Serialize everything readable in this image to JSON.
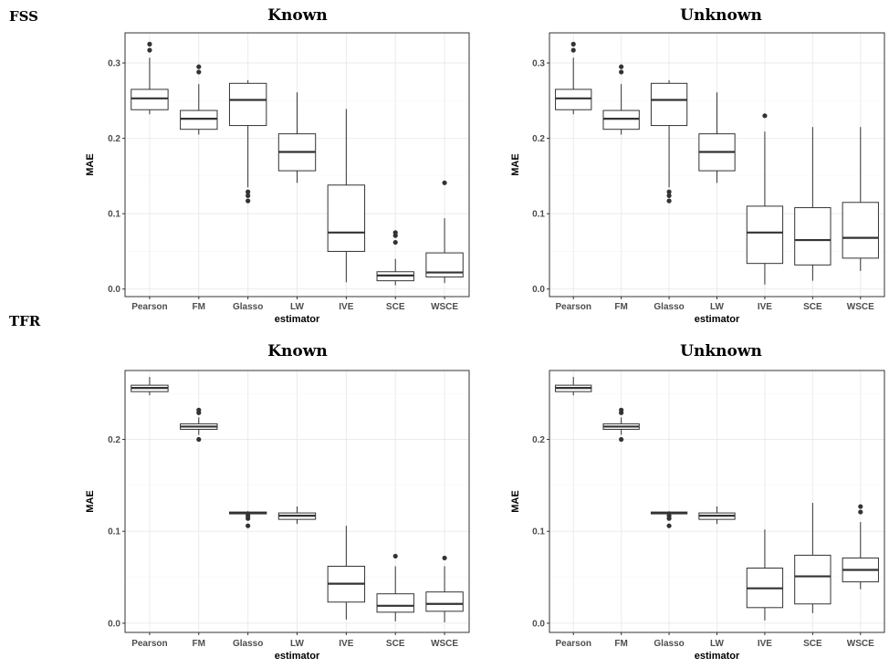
{
  "row_labels": [
    "FSS",
    "TFR"
  ],
  "chart_data": [
    {
      "type": "box",
      "group": "FSS",
      "title": "Known",
      "xlabel": "estimator",
      "ylabel": "MAE",
      "categories": [
        "Pearson",
        "FM",
        "Glasso",
        "LW",
        "IVE",
        "SCE",
        "WSCE"
      ],
      "ylim": [
        -0.01,
        0.34
      ],
      "yticks": [
        0.0,
        0.1,
        0.2,
        0.3
      ],
      "ytick_labels": [
        "0.0",
        "0.1",
        "0.2",
        "0.3"
      ],
      "boxes": [
        {
          "min": 0.232,
          "q1": 0.238,
          "median": 0.253,
          "q3": 0.265,
          "max": 0.307,
          "outliers": [
            0.317,
            0.325
          ]
        },
        {
          "min": 0.205,
          "q1": 0.212,
          "median": 0.226,
          "q3": 0.237,
          "max": 0.272,
          "outliers": [
            0.288,
            0.295
          ]
        },
        {
          "min": 0.135,
          "q1": 0.217,
          "median": 0.251,
          "q3": 0.273,
          "max": 0.277,
          "outliers": [
            0.117,
            0.124,
            0.129
          ]
        },
        {
          "min": 0.141,
          "q1": 0.157,
          "median": 0.182,
          "q3": 0.206,
          "max": 0.261,
          "outliers": []
        },
        {
          "min": 0.009,
          "q1": 0.05,
          "median": 0.075,
          "q3": 0.138,
          "max": 0.239,
          "outliers": []
        },
        {
          "min": 0.005,
          "q1": 0.011,
          "median": 0.018,
          "q3": 0.023,
          "max": 0.04,
          "outliers": [
            0.062,
            0.071,
            0.075
          ]
        },
        {
          "min": 0.008,
          "q1": 0.016,
          "median": 0.022,
          "q3": 0.048,
          "max": 0.094,
          "outliers": [
            0.141
          ]
        }
      ]
    },
    {
      "type": "box",
      "group": "FSS",
      "title": "Unknown",
      "xlabel": "estimator",
      "ylabel": "MAE",
      "categories": [
        "Pearson",
        "FM",
        "Glasso",
        "LW",
        "IVE",
        "SCE",
        "WSCE"
      ],
      "ylim": [
        -0.01,
        0.34
      ],
      "yticks": [
        0.0,
        0.1,
        0.2,
        0.3
      ],
      "ytick_labels": [
        "0.0",
        "0.1",
        "0.2",
        "0.3"
      ],
      "boxes": [
        {
          "min": 0.232,
          "q1": 0.238,
          "median": 0.253,
          "q3": 0.265,
          "max": 0.307,
          "outliers": [
            0.317,
            0.325
          ]
        },
        {
          "min": 0.205,
          "q1": 0.212,
          "median": 0.226,
          "q3": 0.237,
          "max": 0.272,
          "outliers": [
            0.288,
            0.295
          ]
        },
        {
          "min": 0.135,
          "q1": 0.217,
          "median": 0.251,
          "q3": 0.273,
          "max": 0.277,
          "outliers": [
            0.117,
            0.124,
            0.129
          ]
        },
        {
          "min": 0.141,
          "q1": 0.157,
          "median": 0.182,
          "q3": 0.206,
          "max": 0.261,
          "outliers": []
        },
        {
          "min": 0.006,
          "q1": 0.034,
          "median": 0.075,
          "q3": 0.11,
          "max": 0.209,
          "outliers": [
            0.23
          ]
        },
        {
          "min": 0.011,
          "q1": 0.032,
          "median": 0.065,
          "q3": 0.108,
          "max": 0.215,
          "outliers": []
        },
        {
          "min": 0.024,
          "q1": 0.041,
          "median": 0.068,
          "q3": 0.115,
          "max": 0.215,
          "outliers": []
        }
      ]
    },
    {
      "type": "box",
      "group": "TFR",
      "title": "Known",
      "xlabel": "estimator",
      "ylabel": "MAE",
      "categories": [
        "Pearson",
        "FM",
        "Glasso",
        "LW",
        "IVE",
        "SCE",
        "WSCE"
      ],
      "ylim": [
        -0.01,
        0.275
      ],
      "yticks": [
        0.0,
        0.1,
        0.2
      ],
      "ytick_labels": [
        "0.0",
        "0.1",
        "0.2"
      ],
      "boxes": [
        {
          "min": 0.248,
          "q1": 0.252,
          "median": 0.256,
          "q3": 0.259,
          "max": 0.268,
          "outliers": []
        },
        {
          "min": 0.205,
          "q1": 0.211,
          "median": 0.214,
          "q3": 0.217,
          "max": 0.224,
          "outliers": [
            0.2,
            0.229,
            0.232
          ]
        },
        {
          "min": 0.118,
          "q1": 0.119,
          "median": 0.12,
          "q3": 0.121,
          "max": 0.122,
          "outliers": [
            0.106,
            0.114,
            0.117
          ]
        },
        {
          "min": 0.108,
          "q1": 0.113,
          "median": 0.117,
          "q3": 0.12,
          "max": 0.127,
          "outliers": []
        },
        {
          "min": 0.004,
          "q1": 0.023,
          "median": 0.043,
          "q3": 0.062,
          "max": 0.106,
          "outliers": []
        },
        {
          "min": 0.002,
          "q1": 0.012,
          "median": 0.019,
          "q3": 0.032,
          "max": 0.062,
          "outliers": [
            0.073
          ]
        },
        {
          "min": 0.001,
          "q1": 0.013,
          "median": 0.021,
          "q3": 0.034,
          "max": 0.062,
          "outliers": [
            0.071
          ]
        }
      ]
    },
    {
      "type": "box",
      "group": "TFR",
      "title": "Unknown",
      "xlabel": "estimator",
      "ylabel": "MAE",
      "categories": [
        "Pearson",
        "FM",
        "Glasso",
        "LW",
        "IVE",
        "SCE",
        "WSCE"
      ],
      "ylim": [
        -0.01,
        0.275
      ],
      "yticks": [
        0.0,
        0.1,
        0.2
      ],
      "ytick_labels": [
        "0.0",
        "0.1",
        "0.2"
      ],
      "boxes": [
        {
          "min": 0.248,
          "q1": 0.252,
          "median": 0.256,
          "q3": 0.259,
          "max": 0.268,
          "outliers": []
        },
        {
          "min": 0.205,
          "q1": 0.211,
          "median": 0.214,
          "q3": 0.217,
          "max": 0.224,
          "outliers": [
            0.2,
            0.229,
            0.232
          ]
        },
        {
          "min": 0.118,
          "q1": 0.119,
          "median": 0.12,
          "q3": 0.121,
          "max": 0.122,
          "outliers": [
            0.106,
            0.114,
            0.117
          ]
        },
        {
          "min": 0.108,
          "q1": 0.113,
          "median": 0.117,
          "q3": 0.12,
          "max": 0.127,
          "outliers": []
        },
        {
          "min": 0.003,
          "q1": 0.017,
          "median": 0.038,
          "q3": 0.06,
          "max": 0.102,
          "outliers": []
        },
        {
          "min": 0.011,
          "q1": 0.021,
          "median": 0.051,
          "q3": 0.074,
          "max": 0.131,
          "outliers": []
        },
        {
          "min": 0.037,
          "q1": 0.045,
          "median": 0.058,
          "q3": 0.071,
          "max": 0.11,
          "outliers": [
            0.121,
            0.127
          ]
        }
      ]
    }
  ]
}
